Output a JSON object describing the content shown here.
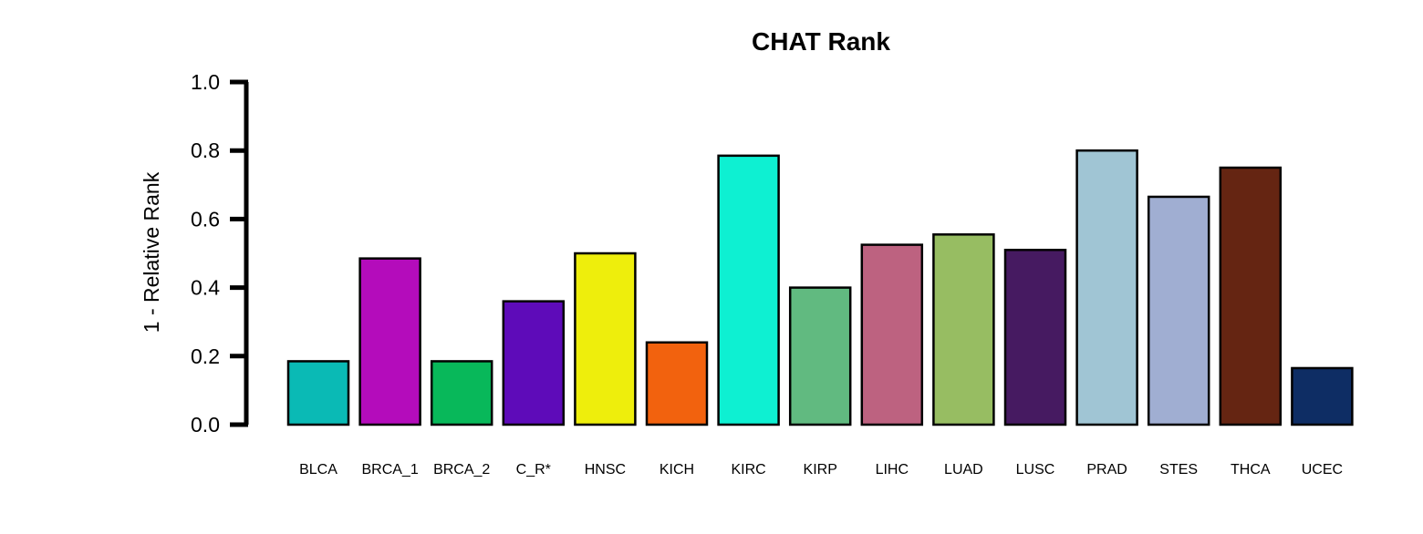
{
  "chart_data": {
    "type": "bar",
    "title": "CHAT Rank",
    "xlabel": "",
    "ylabel": "1 - Relative Rank",
    "ylim": [
      0,
      1.0
    ],
    "yticks": [
      "0.0",
      "0.2",
      "0.4",
      "0.6",
      "0.8",
      "1.0"
    ],
    "grid": false,
    "legend": "none",
    "categories": [
      "BLCA",
      "BRCA_1",
      "BRCA_2",
      "C_R*",
      "HNSC",
      "KICH",
      "KIRC",
      "KIRP",
      "LIHC",
      "LUAD",
      "LUSC",
      "PRAD",
      "STES",
      "THCA",
      "UCEC"
    ],
    "values": [
      0.185,
      0.485,
      0.185,
      0.36,
      0.5,
      0.24,
      0.785,
      0.4,
      0.525,
      0.555,
      0.51,
      0.8,
      0.665,
      0.75,
      0.165
    ],
    "colors": [
      "#0ABAB5",
      "#B40CBB",
      "#08B85A",
      "#5E0BB9",
      "#EEEE0C",
      "#F2620E",
      "#0EF0D2",
      "#61BA80",
      "#BD6280",
      "#97BD62",
      "#461A61",
      "#A0C5D4",
      "#A0AED2",
      "#652512",
      "#0E2D64"
    ]
  }
}
